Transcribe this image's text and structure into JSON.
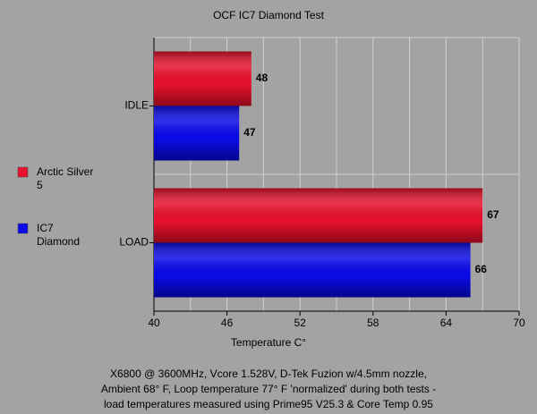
{
  "chart_data": {
    "type": "hbar",
    "title": "OCF IC7 Diamond Test",
    "categories": [
      "IDLE",
      "LOAD"
    ],
    "series": [
      {
        "name": "Arctic Silver 5",
        "color": "#e8102c",
        "values": [
          48,
          67
        ]
      },
      {
        "name": "IC7 Diamond",
        "color": "#0a0ae8",
        "values": [
          47,
          66
        ]
      }
    ],
    "xlim": [
      40,
      70
    ],
    "xticks": [
      40,
      46,
      52,
      58,
      64,
      70
    ],
    "xminor": [
      43,
      49,
      55,
      61,
      67
    ],
    "xlabel": "Temperature C°",
    "grid": true,
    "legend": "left",
    "notes": [
      "X6800 @ 3600MHz, Vcore 1.528V, D-Tek Fuzion w/4.5mm nozzle,",
      "Ambient 68° F, Loop temperature 77° F 'normalized' during both tests -",
      "load temperatures measured using Prime95 V25.3 & Core Temp 0.95"
    ]
  }
}
